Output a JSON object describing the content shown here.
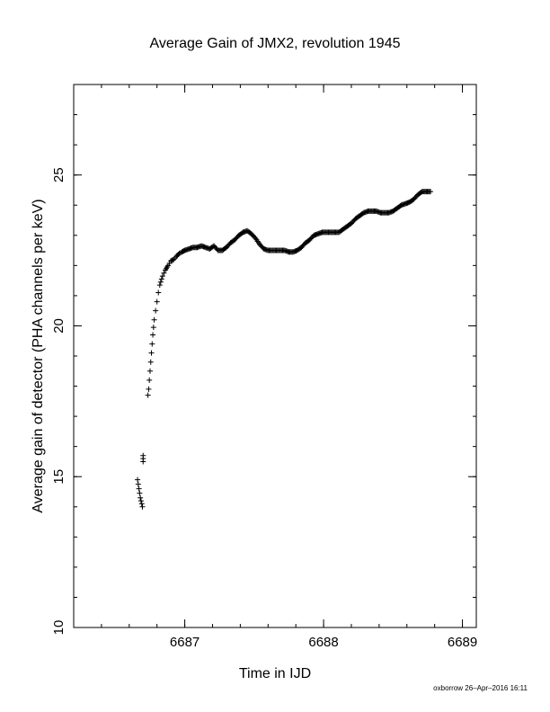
{
  "chart_data": {
    "type": "scatter",
    "title": "Average Gain of JMX2, revolution 1945",
    "xlabel": "Time in IJD",
    "ylabel": "Average gain of detector (PHA channels per keV)",
    "xlim": [
      6686.2,
      6689.1
    ],
    "ylim": [
      10,
      28
    ],
    "x_ticks": [
      6687,
      6688,
      6689
    ],
    "x_tick_labels": [
      "6687",
      "6688",
      "6689"
    ],
    "y_ticks": [
      10,
      15,
      20,
      25
    ],
    "y_tick_labels": [
      "10",
      "15",
      "20",
      "25"
    ],
    "x_minor_step": 0.2,
    "y_minor_step": 1,
    "marker": "plus",
    "grid": false,
    "series": [
      {
        "x": [
          6686.66,
          6686.665,
          6686.67,
          6686.675,
          6686.68,
          6686.685,
          6686.69,
          6686.695,
          6686.7,
          6686.7,
          6686.7,
          6686.735,
          6686.74,
          6686.745,
          6686.75,
          6686.755,
          6686.76,
          6686.765,
          6686.77,
          6686.775,
          6686.78,
          6686.79,
          6686.8,
          6686.81,
          6686.82,
          6686.84,
          6686.86,
          6686.88,
          6686.9,
          6686.92,
          6686.94,
          6686.96,
          6686.98,
          6687.0,
          6687.03,
          6687.06,
          6687.09,
          6687.12,
          6687.15,
          6687.18,
          6687.21,
          6687.24,
          6687.27,
          6687.3,
          6687.33,
          6687.36,
          6687.39,
          6687.42,
          6687.45,
          6687.48,
          6687.51,
          6687.54,
          6687.57,
          6687.6,
          6687.63,
          6687.66,
          6687.69,
          6687.72,
          6687.75,
          6687.78,
          6687.81,
          6687.84,
          6687.87,
          6687.9,
          6687.93,
          6687.96,
          6687.99,
          6688.02,
          6688.05,
          6688.08,
          6688.11,
          6688.14,
          6688.17,
          6688.2,
          6688.23,
          6688.26,
          6688.29,
          6688.32,
          6688.35,
          6688.38,
          6688.41,
          6688.44,
          6688.47,
          6688.5,
          6688.53,
          6688.56,
          6688.59,
          6688.62,
          6688.65,
          6688.68,
          6688.71,
          6688.74,
          6688.77
        ],
        "y": [
          14.9,
          14.75,
          14.6,
          14.45,
          14.3,
          14.2,
          14.1,
          14.0,
          15.5,
          15.7,
          15.6,
          17.7,
          17.9,
          18.2,
          18.5,
          18.8,
          19.1,
          19.4,
          19.7,
          19.95,
          20.2,
          20.5,
          20.8,
          21.1,
          21.35,
          21.65,
          21.85,
          22.0,
          22.15,
          22.2,
          22.3,
          22.4,
          22.45,
          22.5,
          22.55,
          22.6,
          22.6,
          22.65,
          22.6,
          22.55,
          22.65,
          22.5,
          22.5,
          22.6,
          22.75,
          22.85,
          23.0,
          23.1,
          23.15,
          23.05,
          22.9,
          22.7,
          22.55,
          22.5,
          22.5,
          22.5,
          22.5,
          22.5,
          22.45,
          22.45,
          22.5,
          22.6,
          22.75,
          22.85,
          23.0,
          23.05,
          23.1,
          23.1,
          23.1,
          23.1,
          23.1,
          23.2,
          23.3,
          23.4,
          23.55,
          23.65,
          23.75,
          23.8,
          23.8,
          23.8,
          23.75,
          23.75,
          23.75,
          23.8,
          23.9,
          24.0,
          24.05,
          24.1,
          24.2,
          24.35,
          24.45,
          24.45,
          24.45
        ]
      }
    ]
  },
  "footer": {
    "credit": "oxborrow 26–Apr–2016 16:11"
  }
}
